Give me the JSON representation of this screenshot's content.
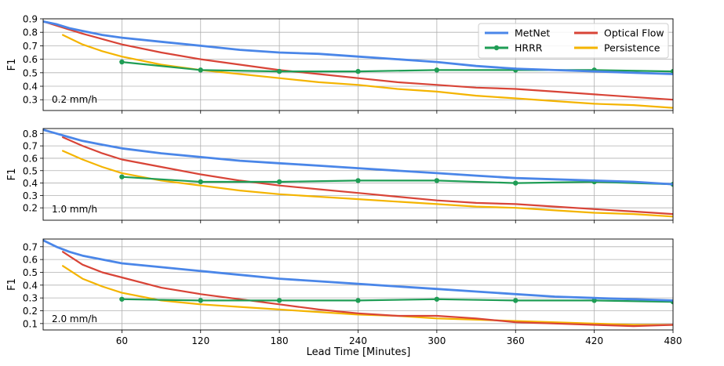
{
  "chart_data": {
    "type": "line",
    "xlabel": "Lead Time [Minutes]",
    "xlim": [
      0,
      480
    ],
    "xticks": [
      60,
      120,
      180,
      240,
      300,
      360,
      420,
      480
    ],
    "legend": {
      "placement": "top-right",
      "entries": [
        "MetNet",
        "Optical Flow",
        "HRRR",
        "Persistence"
      ]
    },
    "colors": {
      "MetNet": "#4a86e8",
      "Optical Flow": "#d84437",
      "HRRR": "#1f9d55",
      "Persistence": "#f4b400"
    },
    "grid": true,
    "panels": [
      {
        "annotation": "0.2 mm/h",
        "ylabel": "F1",
        "ylim": [
          0.22,
          0.9
        ],
        "yticks": [
          0.3,
          0.4,
          0.5,
          0.6,
          0.7,
          0.8,
          0.9
        ],
        "series": [
          {
            "name": "MetNet",
            "x": [
              0,
              10,
              20,
              30,
              45,
              60,
              90,
              120,
              150,
              180,
              210,
              240,
              270,
              300,
              330,
              360,
              390,
              420,
              450,
              480
            ],
            "values": [
              0.88,
              0.86,
              0.83,
              0.81,
              0.78,
              0.76,
              0.73,
              0.7,
              0.67,
              0.65,
              0.64,
              0.62,
              0.6,
              0.58,
              0.55,
              0.53,
              0.52,
              0.51,
              0.5,
              0.49
            ]
          },
          {
            "name": "Optical Flow",
            "x": [
              0,
              10,
              20,
              30,
              45,
              60,
              90,
              120,
              150,
              180,
              210,
              240,
              270,
              300,
              330,
              360,
              390,
              420,
              450,
              480
            ],
            "values": [
              0.88,
              0.85,
              0.82,
              0.79,
              0.75,
              0.71,
              0.65,
              0.6,
              0.56,
              0.52,
              0.49,
              0.46,
              0.43,
              0.41,
              0.39,
              0.38,
              0.36,
              0.34,
              0.32,
              0.3
            ]
          },
          {
            "name": "HRRR",
            "x": [
              60,
              120,
              180,
              240,
              300,
              360,
              420,
              480
            ],
            "values": [
              0.58,
              0.52,
              0.51,
              0.51,
              0.52,
              0.52,
              0.52,
              0.51
            ]
          },
          {
            "name": "Persistence",
            "x": [
              15,
              30,
              45,
              60,
              90,
              120,
              150,
              180,
              210,
              240,
              270,
              300,
              330,
              360,
              390,
              420,
              450,
              480
            ],
            "values": [
              0.78,
              0.71,
              0.66,
              0.62,
              0.56,
              0.52,
              0.49,
              0.46,
              0.43,
              0.41,
              0.38,
              0.36,
              0.33,
              0.31,
              0.29,
              0.27,
              0.26,
              0.24
            ]
          }
        ]
      },
      {
        "annotation": "1.0 mm/h",
        "ylabel": "F1",
        "ylim": [
          0.1,
          0.84
        ],
        "yticks": [
          0.2,
          0.3,
          0.4,
          0.5,
          0.6,
          0.7,
          0.8
        ],
        "series": [
          {
            "name": "MetNet",
            "x": [
              0,
              10,
              20,
              30,
              45,
              60,
              90,
              120,
              150,
              180,
              210,
              240,
              270,
              300,
              330,
              360,
              390,
              420,
              450,
              480
            ],
            "values": [
              0.83,
              0.8,
              0.77,
              0.74,
              0.71,
              0.68,
              0.64,
              0.61,
              0.58,
              0.56,
              0.54,
              0.52,
              0.5,
              0.48,
              0.46,
              0.44,
              0.43,
              0.42,
              0.41,
              0.39
            ]
          },
          {
            "name": "Optical Flow",
            "x": [
              15,
              30,
              45,
              60,
              90,
              120,
              150,
              180,
              210,
              240,
              270,
              300,
              330,
              360,
              390,
              420,
              450,
              480
            ],
            "values": [
              0.77,
              0.7,
              0.64,
              0.59,
              0.53,
              0.47,
              0.42,
              0.38,
              0.35,
              0.32,
              0.29,
              0.26,
              0.24,
              0.23,
              0.21,
              0.19,
              0.17,
              0.15
            ]
          },
          {
            "name": "HRRR",
            "x": [
              60,
              120,
              180,
              240,
              300,
              360,
              420,
              480
            ],
            "values": [
              0.45,
              0.41,
              0.41,
              0.42,
              0.42,
              0.4,
              0.41,
              0.39
            ]
          },
          {
            "name": "Persistence",
            "x": [
              15,
              30,
              45,
              60,
              90,
              120,
              150,
              180,
              210,
              240,
              270,
              300,
              330,
              360,
              390,
              420,
              450,
              480
            ],
            "values": [
              0.66,
              0.59,
              0.53,
              0.48,
              0.42,
              0.38,
              0.34,
              0.31,
              0.29,
              0.27,
              0.25,
              0.23,
              0.21,
              0.2,
              0.18,
              0.16,
              0.15,
              0.13
            ]
          }
        ]
      },
      {
        "annotation": "2.0 mm/h",
        "ylabel": "F1",
        "ylim": [
          0.05,
          0.76
        ],
        "yticks": [
          0.1,
          0.2,
          0.3,
          0.4,
          0.5,
          0.6,
          0.7
        ],
        "series": [
          {
            "name": "MetNet",
            "x": [
              0,
              10,
              20,
              30,
              45,
              60,
              90,
              120,
              150,
              180,
              210,
              240,
              270,
              300,
              330,
              360,
              390,
              420,
              450,
              480
            ],
            "values": [
              0.75,
              0.7,
              0.66,
              0.63,
              0.6,
              0.57,
              0.54,
              0.51,
              0.48,
              0.45,
              0.43,
              0.41,
              0.39,
              0.37,
              0.35,
              0.33,
              0.31,
              0.3,
              0.29,
              0.28
            ]
          },
          {
            "name": "Optical Flow",
            "x": [
              15,
              30,
              45,
              60,
              90,
              120,
              150,
              180,
              210,
              240,
              270,
              300,
              330,
              360,
              390,
              420,
              450,
              480
            ],
            "values": [
              0.66,
              0.56,
              0.5,
              0.46,
              0.38,
              0.33,
              0.29,
              0.25,
              0.21,
              0.18,
              0.16,
              0.16,
              0.14,
              0.11,
              0.1,
              0.09,
              0.08,
              0.09
            ]
          },
          {
            "name": "HRRR",
            "x": [
              60,
              120,
              180,
              240,
              300,
              360,
              420,
              480
            ],
            "values": [
              0.29,
              0.28,
              0.28,
              0.28,
              0.29,
              0.28,
              0.28,
              0.27
            ]
          },
          {
            "name": "Persistence",
            "x": [
              15,
              30,
              45,
              60,
              90,
              120,
              150,
              180,
              210,
              240,
              270,
              300,
              330,
              360,
              390,
              420,
              450,
              480
            ],
            "values": [
              0.55,
              0.45,
              0.39,
              0.34,
              0.28,
              0.25,
              0.23,
              0.21,
              0.19,
              0.17,
              0.16,
              0.14,
              0.13,
              0.12,
              0.11,
              0.1,
              0.09,
              0.09
            ]
          }
        ]
      }
    ]
  }
}
